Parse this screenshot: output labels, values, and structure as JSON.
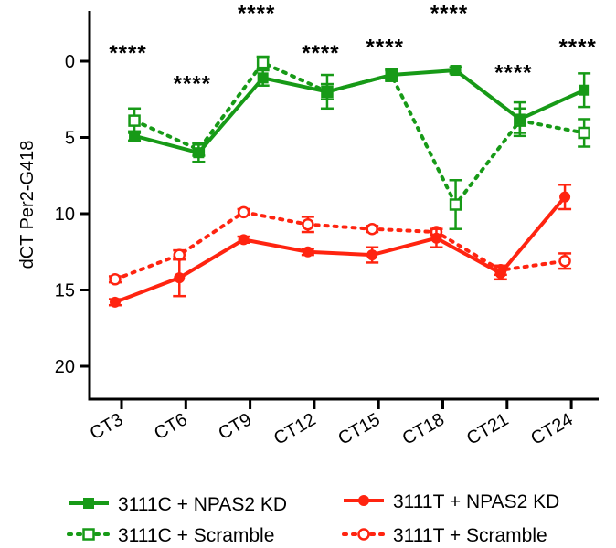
{
  "chart_data": {
    "type": "line",
    "title": "",
    "xlabel": "",
    "ylabel": "dCT Per2-G418",
    "y_inverted": true,
    "ylim": [
      -3,
      22
    ],
    "yticks": [
      0,
      5,
      10,
      15,
      20
    ],
    "categories": [
      "CT3",
      "CT6",
      "CT9",
      "CT12",
      "CT15",
      "CT18",
      "CT21",
      "CT24"
    ],
    "series": [
      {
        "name": "3111C + NPAS2 KD",
        "color": "#179a17",
        "line": "solid",
        "marker": "square-filled",
        "offset": 0.2,
        "values": [
          4.9,
          6.0,
          1.1,
          2.0,
          0.9,
          0.6,
          3.8,
          1.9
        ],
        "errors": [
          0.3,
          0.6,
          0.5,
          1.1,
          0.4,
          0.2,
          1.1,
          1.1
        ]
      },
      {
        "name": "3111C + Scramble",
        "color": "#179a17",
        "line": "dotted",
        "marker": "square-open",
        "offset": 0.2,
        "values": [
          3.9,
          5.8,
          0.1,
          2.0,
          0.9,
          9.4,
          3.9,
          4.7
        ],
        "errors": [
          0.8,
          0.4,
          0.4,
          0.5,
          0.3,
          1.6,
          0.8,
          0.9
        ]
      },
      {
        "name": "3111T + NPAS2 KD",
        "color": "#ff2410",
        "line": "solid",
        "marker": "circle-filled",
        "offset": -0.1,
        "values": [
          15.8,
          14.2,
          11.7,
          12.5,
          12.7,
          11.6,
          13.9,
          8.9
        ],
        "errors": [
          0.2,
          1.2,
          0.2,
          0.2,
          0.5,
          0.6,
          0.4,
          0.8
        ]
      },
      {
        "name": "3111T + Scramble",
        "color": "#ff2410",
        "line": "dotted",
        "marker": "circle-open",
        "offset": -0.1,
        "values": [
          14.3,
          12.7,
          9.9,
          10.7,
          11.0,
          11.2,
          13.7,
          13.1
        ],
        "errors": [
          0.2,
          0.3,
          0.2,
          0.5,
          0.2,
          0.2,
          0.3,
          0.5
        ]
      }
    ],
    "annotations": [
      {
        "category": "CT3",
        "text": "****",
        "y": -0.6
      },
      {
        "category": "CT6",
        "text": "****",
        "y": 1.4
      },
      {
        "category": "CT9",
        "text": "****",
        "y": -3.2
      },
      {
        "category": "CT12",
        "text": "****",
        "y": -0.6
      },
      {
        "category": "CT15",
        "text": "****",
        "y": -1.0
      },
      {
        "category": "CT18",
        "text": "****",
        "y": -3.2
      },
      {
        "category": "CT21",
        "text": "****",
        "y": 0.7
      },
      {
        "category": "CT24",
        "text": "****",
        "y": -1.0
      }
    ],
    "legend_position": "bottom"
  }
}
